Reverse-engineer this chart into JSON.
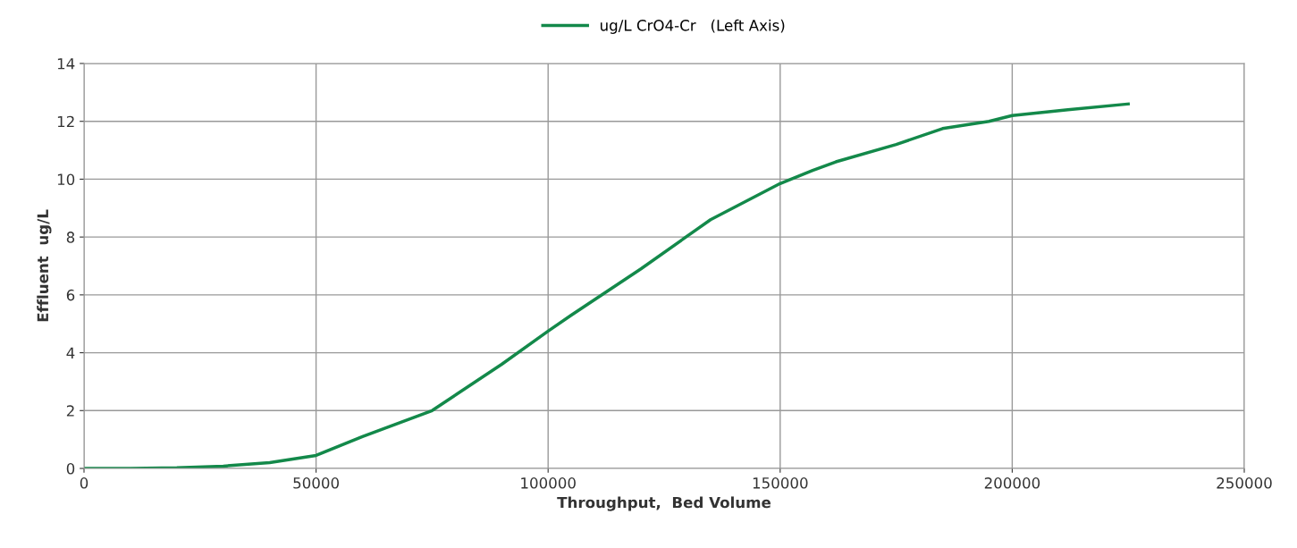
{
  "chart_data": {
    "type": "line",
    "xlabel": "Throughput,  Bed Volume",
    "ylabel": "Effluent  ug/L",
    "x": [
      0,
      10000,
      20000,
      30000,
      40000,
      50000,
      60000,
      75000,
      90000,
      100000,
      105000,
      120000,
      135000,
      150000,
      157000,
      162000,
      175000,
      185000,
      195000,
      200000,
      212000,
      225000
    ],
    "series": [
      {
        "name": "ug/L CrO4-Cr   (Left Axis)",
        "color": "#13894a",
        "values": [
          0,
          0,
          0.02,
          0.08,
          0.2,
          0.45,
          1.1,
          2.0,
          3.6,
          4.75,
          5.3,
          6.9,
          8.6,
          9.85,
          10.3,
          10.6,
          11.2,
          11.75,
          12.0,
          12.2,
          12.4,
          12.6
        ]
      }
    ],
    "xlim": [
      0,
      250000
    ],
    "xticks": [
      0,
      50000,
      100000,
      150000,
      200000,
      250000
    ],
    "ylim": [
      0,
      14
    ],
    "yticks": [
      0,
      2,
      4,
      6,
      8,
      10,
      12,
      14
    ],
    "grid": true,
    "legend": "top",
    "marker": "none",
    "line_style": "solid"
  }
}
